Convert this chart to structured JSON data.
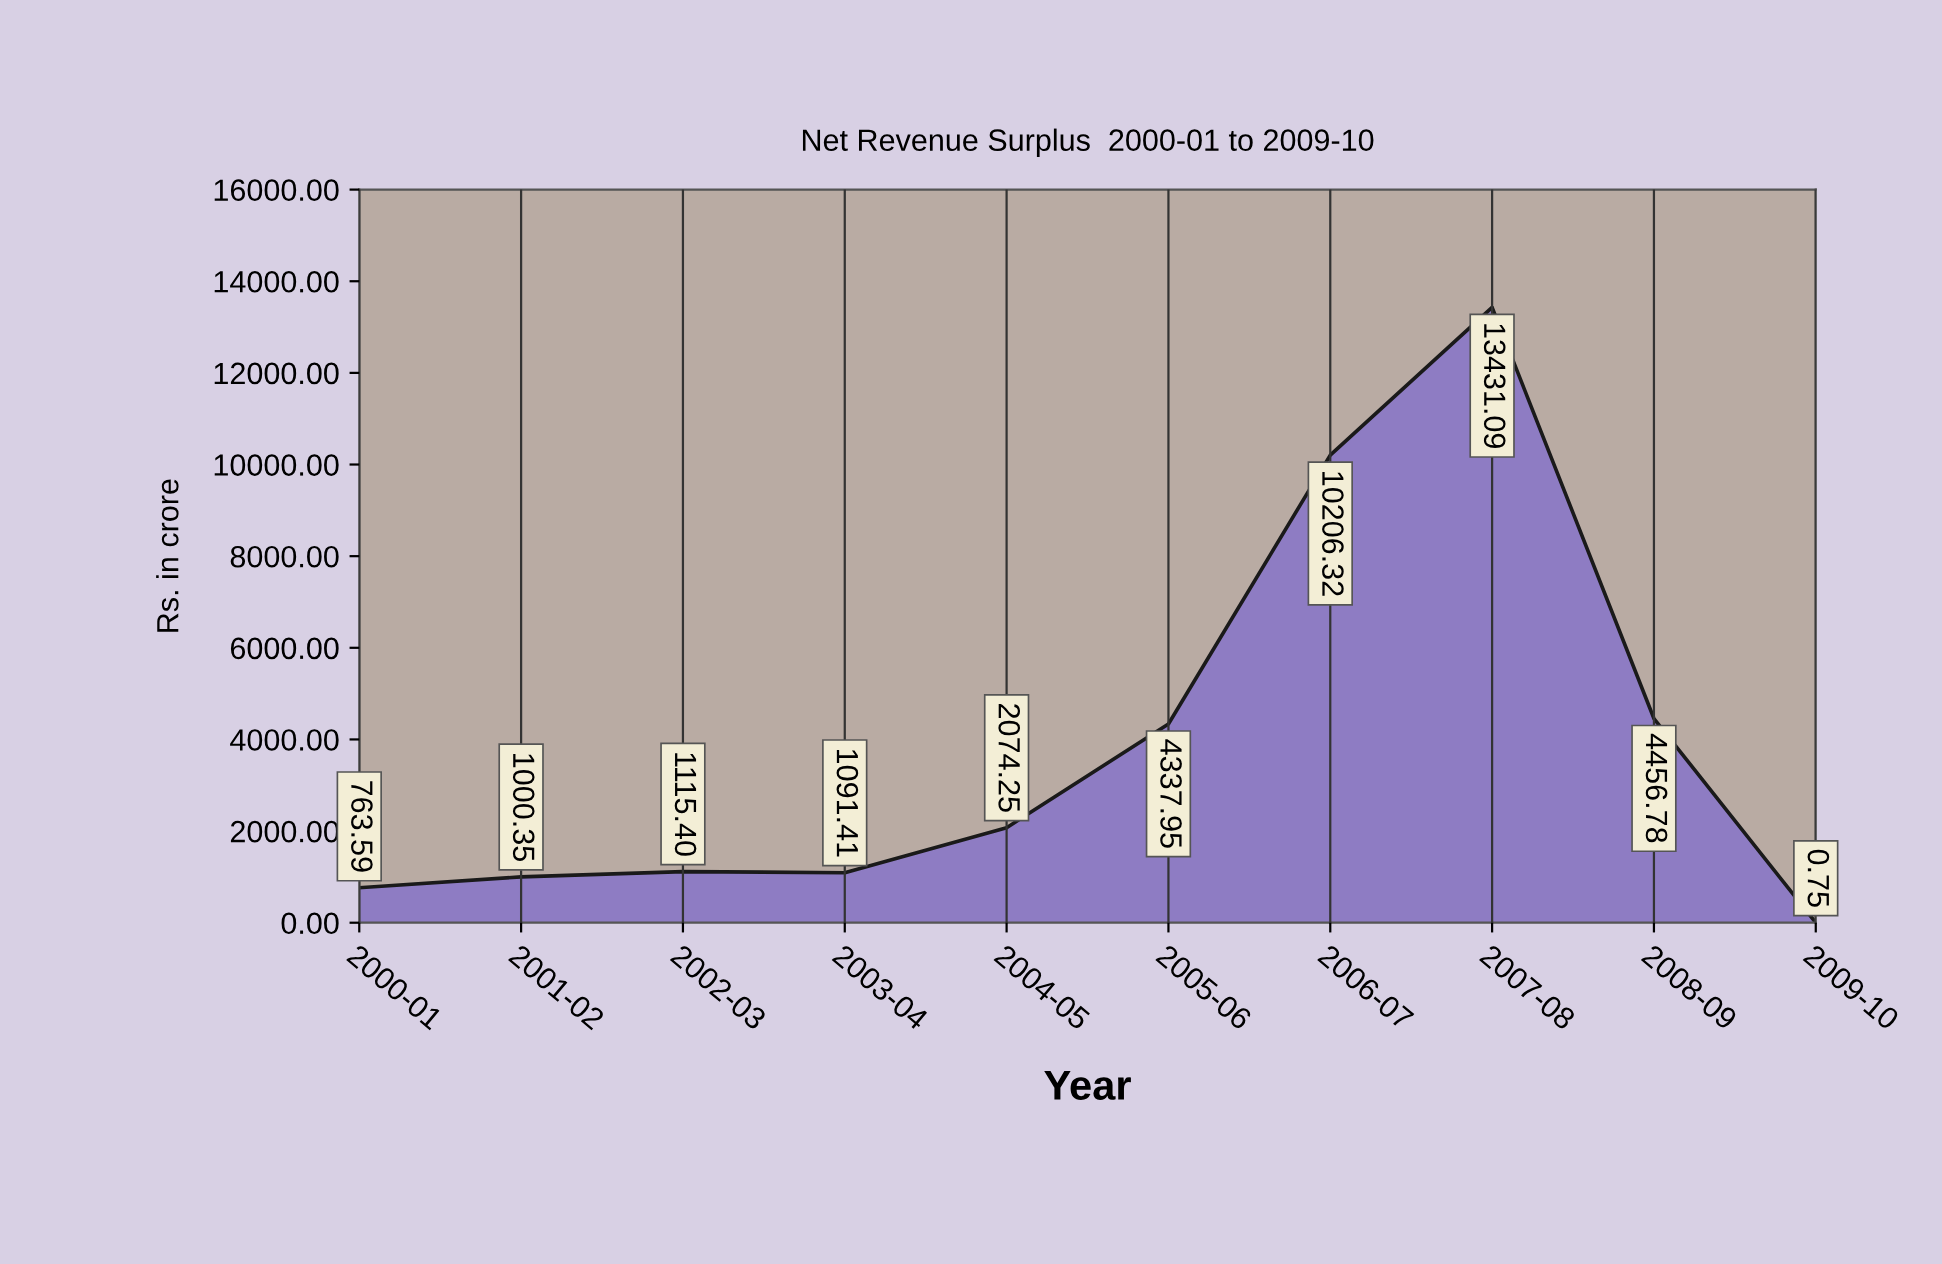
{
  "chart_data": {
    "type": "area",
    "title": "Net Revenue Surplus  2000-01 to 2009-10",
    "xlabel": "Year",
    "ylabel": "Rs. in crore",
    "categories": [
      "2000-01",
      "2001-02",
      "2002-03",
      "2003-04",
      "2004-05",
      "2005-06",
      "2006-07",
      "2007-08",
      "2008-09",
      "2009-10"
    ],
    "values": [
      763.59,
      1000.35,
      1115.4,
      1091.41,
      2074.25,
      4337.95,
      10206.32,
      13431.09,
      4456.78,
      0.75
    ],
    "value_labels": [
      "763.59",
      "1000.35",
      "1115.40",
      "1091.41",
      "2074.25",
      "4337.95",
      "10206.32",
      "13431.09",
      "4456.78",
      "0.75"
    ],
    "color": "#8e7cc3",
    "ylim": [
      0,
      16000
    ],
    "yticks": [
      {
        "value": 0,
        "label": "0.00"
      },
      {
        "value": 2000,
        "label": "2000.00"
      },
      {
        "value": 4000,
        "label": "4000.00"
      },
      {
        "value": 6000,
        "label": "6000.00"
      },
      {
        "value": 8000,
        "label": "8000.00"
      },
      {
        "value": 10000,
        "label": "10000.00"
      },
      {
        "value": 12000,
        "label": "12000.00"
      },
      {
        "value": 14000,
        "label": "14000.00"
      },
      {
        "value": 16000,
        "label": "16000.00"
      }
    ],
    "grid": "x",
    "legend": false
  }
}
